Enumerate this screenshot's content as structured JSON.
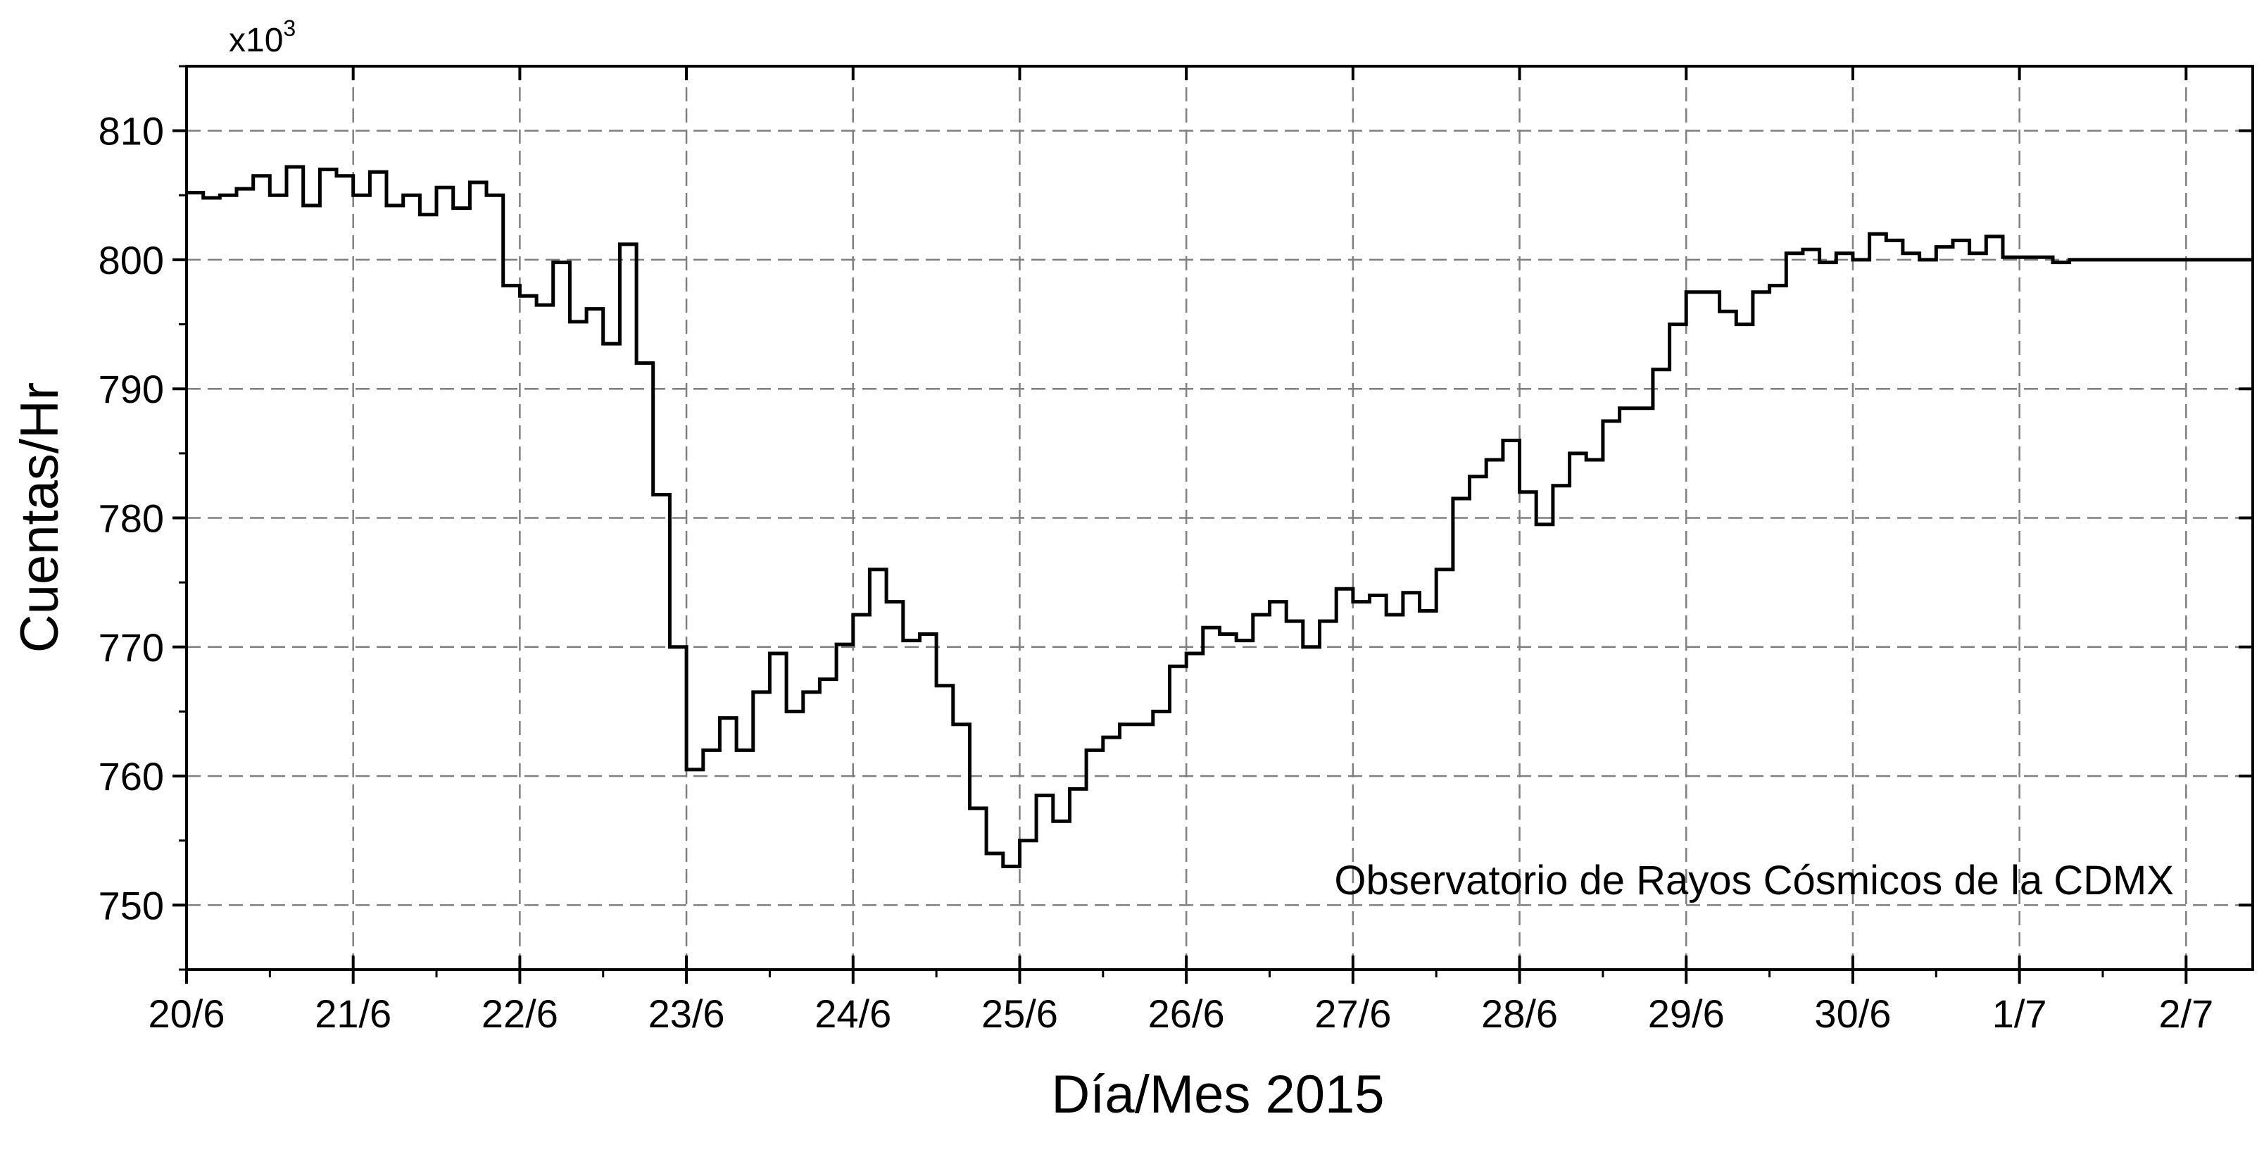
{
  "chart_data": {
    "type": "line",
    "title": "",
    "xlabel": "Día/Mes 2015",
    "ylabel": "Cuentas/Hr",
    "y_multiplier": "x10",
    "y_multiplier_exp": "3",
    "annotation": "Observatorio de Rayos Cósmicos de la CDMX",
    "x_unit": "days (0 = 20/6/2015 00:00)",
    "xlim": [
      0,
      12.4
    ],
    "ylim": [
      745,
      815
    ],
    "x_ticks": [
      0,
      1,
      2,
      3,
      4,
      5,
      6,
      7,
      8,
      9,
      10,
      11,
      12
    ],
    "x_tick_labels": [
      "20/6",
      "21/6",
      "22/6",
      "23/6",
      "24/6",
      "25/6",
      "26/6",
      "27/6",
      "28/6",
      "29/6",
      "30/6",
      "1/7",
      "2/7"
    ],
    "y_ticks": [
      750,
      760,
      770,
      780,
      790,
      800,
      810
    ],
    "y_tick_labels": [
      "750",
      "760",
      "770",
      "780",
      "790",
      "800",
      "810"
    ],
    "grid": true,
    "line_color": "#000000",
    "step": true,
    "series": [
      {
        "x": [
          0.0,
          0.1,
          0.2,
          0.3,
          0.4,
          0.5,
          0.6,
          0.7,
          0.8,
          0.9,
          1.0,
          1.1,
          1.2,
          1.3,
          1.4,
          1.5,
          1.6,
          1.7,
          1.8,
          1.9,
          2.0,
          2.1,
          2.2,
          2.3,
          2.4,
          2.5,
          2.6,
          2.7,
          2.8,
          2.9,
          3.0,
          3.1,
          3.2,
          3.3,
          3.4,
          3.5,
          3.6,
          3.7,
          3.8,
          3.9,
          4.0,
          4.1,
          4.2,
          4.3,
          4.4,
          4.5,
          4.6,
          4.7,
          4.8,
          4.9,
          5.0,
          5.1,
          5.2,
          5.3,
          5.4,
          5.5,
          5.6,
          5.7,
          5.8,
          5.9,
          6.0,
          6.1,
          6.2,
          6.3,
          6.4,
          6.5,
          6.6,
          6.7,
          6.8,
          6.9,
          7.0,
          7.1,
          7.2,
          7.3,
          7.4,
          7.5,
          7.6,
          7.7,
          7.8,
          7.9,
          8.0,
          8.1,
          8.2,
          8.3,
          8.4,
          8.5,
          8.6,
          8.7,
          8.8,
          8.9,
          9.0,
          9.1,
          9.2,
          9.3,
          9.4,
          9.5,
          9.6,
          9.7,
          9.8,
          9.9,
          10.0,
          10.1,
          10.2,
          10.3,
          10.4,
          10.5,
          10.6,
          10.7,
          10.8,
          10.9,
          11.0,
          11.1,
          11.2,
          11.3,
          11.4,
          11.5,
          11.6,
          11.7,
          11.8,
          11.9,
          12.0,
          12.1,
          12.2,
          12.3
        ],
        "values": [
          805.2,
          804.8,
          805.0,
          805.5,
          806.5,
          805.0,
          807.2,
          804.2,
          807.0,
          806.5,
          805.0,
          806.8,
          804.2,
          805.0,
          803.5,
          805.6,
          804.0,
          806.0,
          805.0,
          798.0,
          797.2,
          796.5,
          799.8,
          795.2,
          796.2,
          793.5,
          801.2,
          792.0,
          781.8,
          770.0,
          760.5,
          762.0,
          764.5,
          762.0,
          766.5,
          769.5,
          765.0,
          766.5,
          767.5,
          770.2,
          772.5,
          776.0,
          773.5,
          770.5,
          771.0,
          767.0,
          764.0,
          757.5,
          754.0,
          753.0,
          755.0,
          758.5,
          756.5,
          759.0,
          762.0,
          763.0,
          764.0,
          764.0,
          765.0,
          768.5,
          769.5,
          771.5,
          771.0,
          770.5,
          772.5,
          773.5,
          772.0,
          770.0,
          772.0,
          774.5,
          773.5,
          774.0,
          772.5,
          774.2,
          772.8,
          776.0,
          781.5,
          783.2,
          784.5,
          786.0,
          782.0,
          779.5,
          782.5,
          785.0,
          784.5,
          787.5,
          788.5,
          788.5,
          791.5,
          795.0,
          797.5,
          797.5,
          796.0,
          795.0,
          797.5,
          798.0,
          800.5,
          800.8,
          799.8,
          800.5,
          800.0,
          802.0,
          801.5,
          800.5,
          800.0,
          801.0,
          801.5,
          800.5,
          801.8,
          800.2,
          800.2,
          800.2,
          799.8,
          800.0,
          800.0,
          800.0,
          800.0,
          800.0,
          800.0,
          800.0,
          800.0,
          800.0,
          800.0,
          800.0
        ]
      }
    ]
  }
}
